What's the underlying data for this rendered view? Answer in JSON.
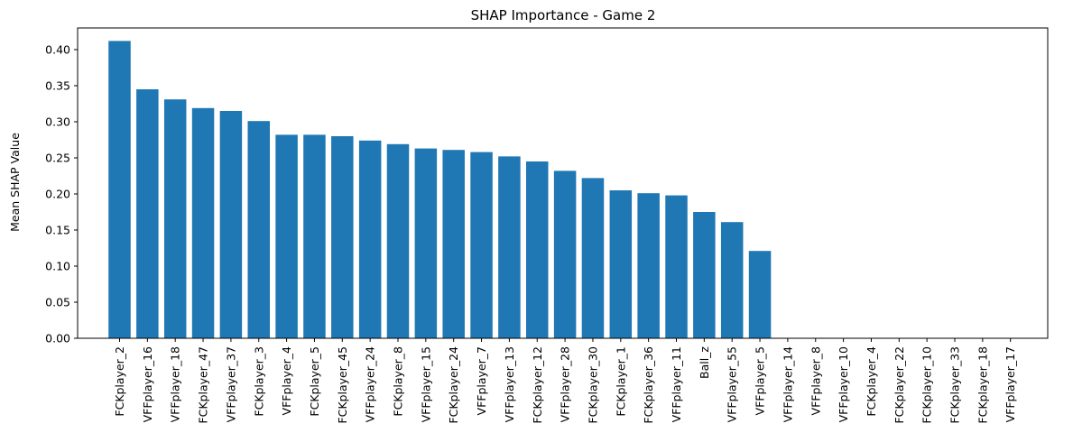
{
  "chart_data": {
    "type": "bar",
    "title": "SHAP Importance - Game 2",
    "xlabel": "",
    "ylabel": "Mean SHAP Value",
    "ylim": [
      0,
      0.43
    ],
    "yticks": [
      "0.00",
      "0.05",
      "0.10",
      "0.15",
      "0.20",
      "0.25",
      "0.30",
      "0.35",
      "0.40"
    ],
    "grid": false,
    "bar_color": "#1f77b4",
    "categories": [
      "FCKplayer_2",
      "VFFplayer_16",
      "VFFplayer_18",
      "FCKplayer_47",
      "VFFplayer_37",
      "FCKplayer_3",
      "VFFplayer_4",
      "FCKplayer_5",
      "FCKplayer_45",
      "VFFplayer_24",
      "FCKplayer_8",
      "VFFplayer_15",
      "FCKplayer_24",
      "VFFplayer_7",
      "VFFplayer_13",
      "FCKplayer_12",
      "VFFplayer_28",
      "FCKplayer_30",
      "FCKplayer_1",
      "FCKplayer_36",
      "VFFplayer_11",
      "Ball_z",
      "VFFplayer_55",
      "VFFplayer_5",
      "VFFplayer_14",
      "VFFplayer_8",
      "VFFplayer_10",
      "FCKplayer_4",
      "FCKplayer_22",
      "FCKplayer_10",
      "FCKplayer_33",
      "FCKplayer_18",
      "VFFplayer_17"
    ],
    "values": [
      0.412,
      0.345,
      0.331,
      0.319,
      0.315,
      0.301,
      0.282,
      0.282,
      0.28,
      0.274,
      0.269,
      0.263,
      0.261,
      0.258,
      0.252,
      0.245,
      0.232,
      0.222,
      0.205,
      0.201,
      0.198,
      0.175,
      0.161,
      0.121,
      0.0,
      0.0,
      0.0,
      0.0,
      0.0,
      0.0,
      0.0,
      0.0,
      0.0
    ]
  }
}
